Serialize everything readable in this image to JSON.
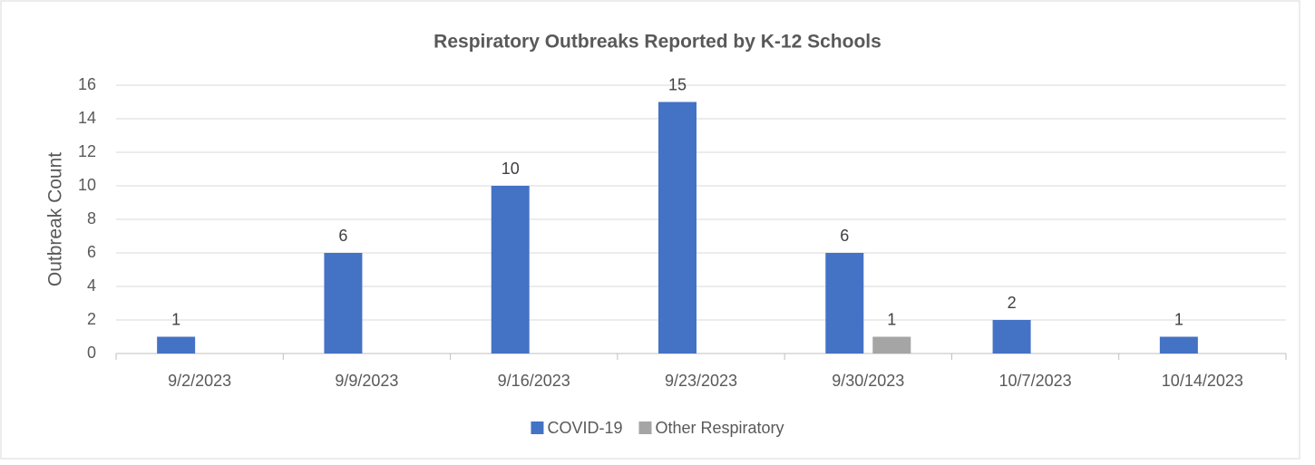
{
  "chart_data": {
    "type": "bar",
    "title": "Respiratory Outbreaks Reported by K-12 Schools",
    "y_label": "Outbreak Count",
    "categories": [
      "9/2/2023",
      "9/9/2023",
      "9/16/2023",
      "9/23/2023",
      "9/30/2023",
      "10/7/2023",
      "10/14/2023"
    ],
    "series": [
      {
        "name": "COVID-19",
        "color": "#4472c4",
        "values": [
          1,
          6,
          10,
          15,
          6,
          2,
          1
        ]
      },
      {
        "name": "Other Respiratory",
        "color": "#a5a5a5",
        "values": [
          null,
          null,
          null,
          null,
          1,
          null,
          null
        ]
      }
    ],
    "ylim": [
      0,
      16
    ],
    "yticks": [
      0,
      2,
      4,
      6,
      8,
      10,
      12,
      14,
      16
    ],
    "grid": true,
    "legend": "bottom"
  }
}
